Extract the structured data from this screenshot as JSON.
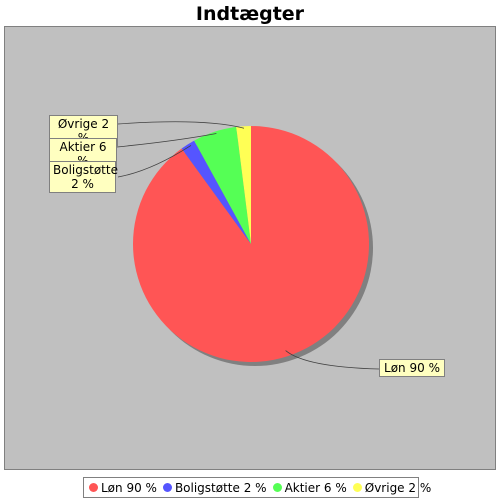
{
  "chart_data": {
    "type": "pie",
    "title": "Indtægter",
    "slices": [
      {
        "label": "Løn 90 %",
        "value": 90,
        "color": "#ff5555"
      },
      {
        "label": "Boligstøtte 2 %",
        "value": 2,
        "color": "#5555ff"
      },
      {
        "label": "Aktier 6 %",
        "value": 6,
        "color": "#55ff55"
      },
      {
        "label": "Øvrige 2 %",
        "value": 2,
        "color": "#ffff55"
      }
    ],
    "callouts": {
      "slice0": "Løn 90 %",
      "slice1": "Boligstøtte\n2 %",
      "slice2": "Aktier 6 %",
      "slice3": "Øvrige 2 %"
    },
    "legend_position": "bottom",
    "background": "#c0c0c0"
  }
}
